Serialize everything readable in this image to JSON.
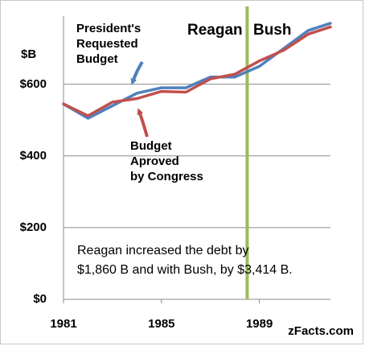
{
  "chart_data": {
    "type": "line",
    "ylabel": "$B",
    "yticks": [
      {
        "value": 0,
        "label": "$0"
      },
      {
        "value": 200,
        "label": "$200"
      },
      {
        "value": 400,
        "label": "$400"
      },
      {
        "value": 600,
        "label": "$600"
      }
    ],
    "xticks": [
      {
        "value": 1981,
        "label": "1981"
      },
      {
        "value": 1985,
        "label": "1985"
      },
      {
        "value": 1989,
        "label": "1989"
      }
    ],
    "xlim": [
      1981,
      1991.9
    ],
    "ylim": [
      0,
      790
    ],
    "grid": "horizontal",
    "x": [
      1981,
      1982,
      1983,
      1984,
      1985,
      1986,
      1987,
      1988,
      1989,
      1990,
      1991,
      1991.9
    ],
    "series": [
      {
        "name": "President's Requested Budget",
        "color": "#4f81bd",
        "values": [
          545,
          505,
          540,
          575,
          590,
          590,
          620,
          620,
          650,
          700,
          750,
          770
        ]
      },
      {
        "name": "Budget Aproved by Congress",
        "color": "#c0504d",
        "values": [
          545,
          512,
          550,
          560,
          580,
          578,
          615,
          628,
          665,
          695,
          740,
          760
        ]
      }
    ],
    "annotations": [
      {
        "text": [
          "President's",
          "Requested",
          "Budget"
        ]
      },
      {
        "text": [
          "Budget",
          "Aproved",
          "by Congress"
        ]
      }
    ],
    "eras": {
      "divider_x": 1988.5,
      "divider_color": "#9bbb59",
      "left": "Reagan",
      "right": "Bush"
    },
    "note": [
      "Reagan increased the debt by",
      "$1,860 B  and with Bush, by  $3,414 B."
    ],
    "source": "zFacts.com"
  }
}
